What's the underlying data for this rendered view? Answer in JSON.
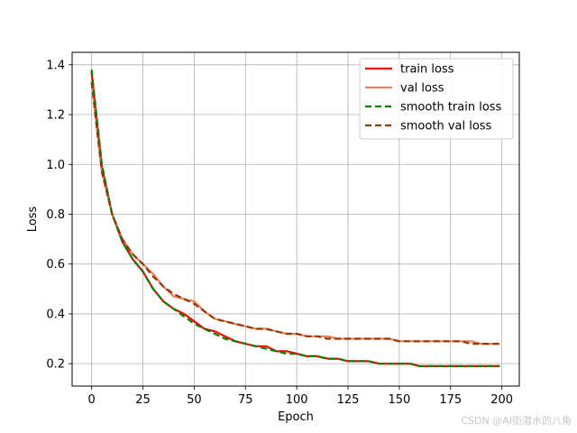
{
  "chart_data": {
    "type": "line",
    "xlabel": "Epoch",
    "ylabel": "Loss",
    "xlim": [
      -9.5,
      208.5
    ],
    "ylim": [
      0.11,
      1.45
    ],
    "x_ticks": [
      0,
      25,
      50,
      75,
      100,
      125,
      150,
      175,
      200
    ],
    "y_ticks": [
      0.2,
      0.4,
      0.6,
      0.8,
      1.0,
      1.2,
      1.4
    ],
    "y_tick_labels": [
      "0.2",
      "0.4",
      "0.6",
      "0.8",
      "1.0",
      "1.2",
      "1.4"
    ],
    "grid": true,
    "legend_position": "upper right",
    "x": [
      0,
      5,
      10,
      15,
      20,
      25,
      30,
      35,
      40,
      45,
      50,
      55,
      60,
      65,
      70,
      75,
      80,
      85,
      90,
      95,
      100,
      105,
      110,
      115,
      120,
      125,
      130,
      135,
      140,
      145,
      150,
      155,
      160,
      165,
      170,
      175,
      180,
      185,
      190,
      195,
      199
    ],
    "series": [
      {
        "name": "train loss",
        "color": "#ff0000",
        "style": "solid",
        "values": [
          1.37,
          0.99,
          0.8,
          0.69,
          0.62,
          0.57,
          0.5,
          0.45,
          0.42,
          0.4,
          0.37,
          0.34,
          0.33,
          0.31,
          0.29,
          0.28,
          0.27,
          0.27,
          0.25,
          0.25,
          0.24,
          0.23,
          0.23,
          0.22,
          0.22,
          0.21,
          0.21,
          0.21,
          0.2,
          0.2,
          0.2,
          0.2,
          0.19,
          0.19,
          0.19,
          0.19,
          0.19,
          0.19,
          0.19,
          0.19,
          0.19
        ]
      },
      {
        "name": "val loss",
        "color": "#f08050",
        "style": "solid",
        "values": [
          1.33,
          0.97,
          0.8,
          0.7,
          0.64,
          0.6,
          0.56,
          0.51,
          0.47,
          0.46,
          0.45,
          0.41,
          0.38,
          0.37,
          0.36,
          0.35,
          0.34,
          0.34,
          0.33,
          0.32,
          0.32,
          0.31,
          0.31,
          0.31,
          0.3,
          0.3,
          0.3,
          0.3,
          0.3,
          0.3,
          0.29,
          0.29,
          0.29,
          0.29,
          0.29,
          0.29,
          0.29,
          0.29,
          0.28,
          0.28,
          0.28
        ]
      },
      {
        "name": "smooth train loss",
        "color": "#008000",
        "style": "dashed",
        "values": [
          1.38,
          1.0,
          0.8,
          0.69,
          0.62,
          0.57,
          0.5,
          0.45,
          0.42,
          0.39,
          0.36,
          0.34,
          0.32,
          0.3,
          0.29,
          0.28,
          0.27,
          0.26,
          0.25,
          0.24,
          0.24,
          0.23,
          0.23,
          0.22,
          0.22,
          0.21,
          0.21,
          0.21,
          0.2,
          0.2,
          0.2,
          0.2,
          0.19,
          0.19,
          0.19,
          0.19,
          0.19,
          0.19,
          0.19,
          0.19,
          0.19
        ]
      },
      {
        "name": "smooth val loss",
        "color": "#8b3a10",
        "style": "dashed",
        "values": [
          1.33,
          0.97,
          0.8,
          0.7,
          0.64,
          0.6,
          0.55,
          0.51,
          0.48,
          0.46,
          0.44,
          0.41,
          0.38,
          0.37,
          0.36,
          0.35,
          0.34,
          0.34,
          0.33,
          0.32,
          0.32,
          0.31,
          0.31,
          0.3,
          0.3,
          0.3,
          0.3,
          0.3,
          0.3,
          0.3,
          0.29,
          0.29,
          0.29,
          0.29,
          0.29,
          0.29,
          0.29,
          0.28,
          0.28,
          0.28,
          0.28
        ]
      }
    ]
  },
  "watermark": "CSDN @AI街潜水的八角"
}
